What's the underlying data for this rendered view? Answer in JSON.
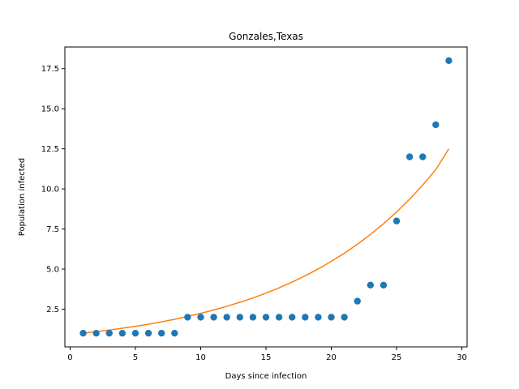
{
  "chart_data": {
    "type": "scatter",
    "title": "Gonzales,Texas",
    "xlabel": "Days since infection",
    "ylabel": "Population infected",
    "xlim": [
      -0.4,
      30.4
    ],
    "ylim": [
      0.15,
      18.85
    ],
    "xticks": [
      0,
      5,
      10,
      15,
      20,
      25,
      30
    ],
    "yticks": [
      2.5,
      5.0,
      7.5,
      10.0,
      12.5,
      15.0,
      17.5
    ],
    "grid": false,
    "series": [
      {
        "kind": "scatter",
        "color": "#1f77b4",
        "x": [
          1,
          2,
          3,
          4,
          5,
          6,
          7,
          8,
          9,
          10,
          11,
          12,
          13,
          14,
          15,
          16,
          17,
          18,
          19,
          20,
          21,
          22,
          23,
          24,
          25,
          26,
          27,
          28,
          29
        ],
        "y": [
          1,
          1,
          1,
          1,
          1,
          1,
          1,
          1,
          2,
          2,
          2,
          2,
          2,
          2,
          2,
          2,
          2,
          2,
          2,
          2,
          2,
          3,
          4,
          4,
          8,
          12,
          12,
          14,
          18
        ]
      },
      {
        "kind": "line",
        "color": "#ff7f0e",
        "x": [
          1,
          2,
          3,
          4,
          5,
          6,
          7,
          8,
          9,
          10,
          11,
          12,
          13,
          14,
          15,
          16,
          17,
          18,
          19,
          20,
          21,
          22,
          23,
          24,
          25,
          26,
          27,
          28,
          29
        ],
        "y": [
          1.0,
          1.1,
          1.2,
          1.31,
          1.43,
          1.56,
          1.71,
          1.87,
          2.05,
          2.24,
          2.45,
          2.68,
          2.93,
          3.2,
          3.5,
          3.83,
          4.19,
          4.58,
          5.01,
          5.48,
          5.99,
          6.55,
          7.16,
          7.83,
          8.56,
          9.36,
          10.24,
          11.2,
          12.5
        ]
      }
    ]
  }
}
